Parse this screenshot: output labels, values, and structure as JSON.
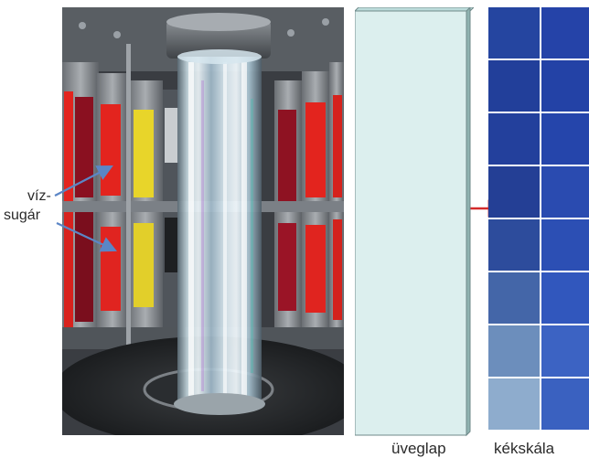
{
  "labels": {
    "water_jet_line1": "víz-",
    "water_jet_line2": "sugár",
    "glass_plate": "üveglap",
    "blue_scale": "kékskála"
  },
  "colors": {
    "arrow_blue": "#5b86c6",
    "arrow_red": "#d42a2a",
    "glass_fill": "#dcefee",
    "sample_red": "#e3241e",
    "sample_yellow": "#e8d52a",
    "sample_dark_red": "#8a1020"
  },
  "blue_scale_swatches": [
    {
      "left": "#2545a0",
      "right": "#2543a8"
    },
    {
      "left": "#223f9a",
      "right": "#2342a6"
    },
    {
      "left": "#23409c",
      "right": "#2545ab"
    },
    {
      "left": "#243f95",
      "right": "#2a4bb0"
    },
    {
      "left": "#2d4c9c",
      "right": "#2c4fb4"
    },
    {
      "left": "#4466a8",
      "right": "#3157bd"
    },
    {
      "left": "#6c8ebc",
      "right": "#3c63c3"
    },
    {
      "left": "#8eaccd",
      "right": "#3a61c0"
    }
  ]
}
